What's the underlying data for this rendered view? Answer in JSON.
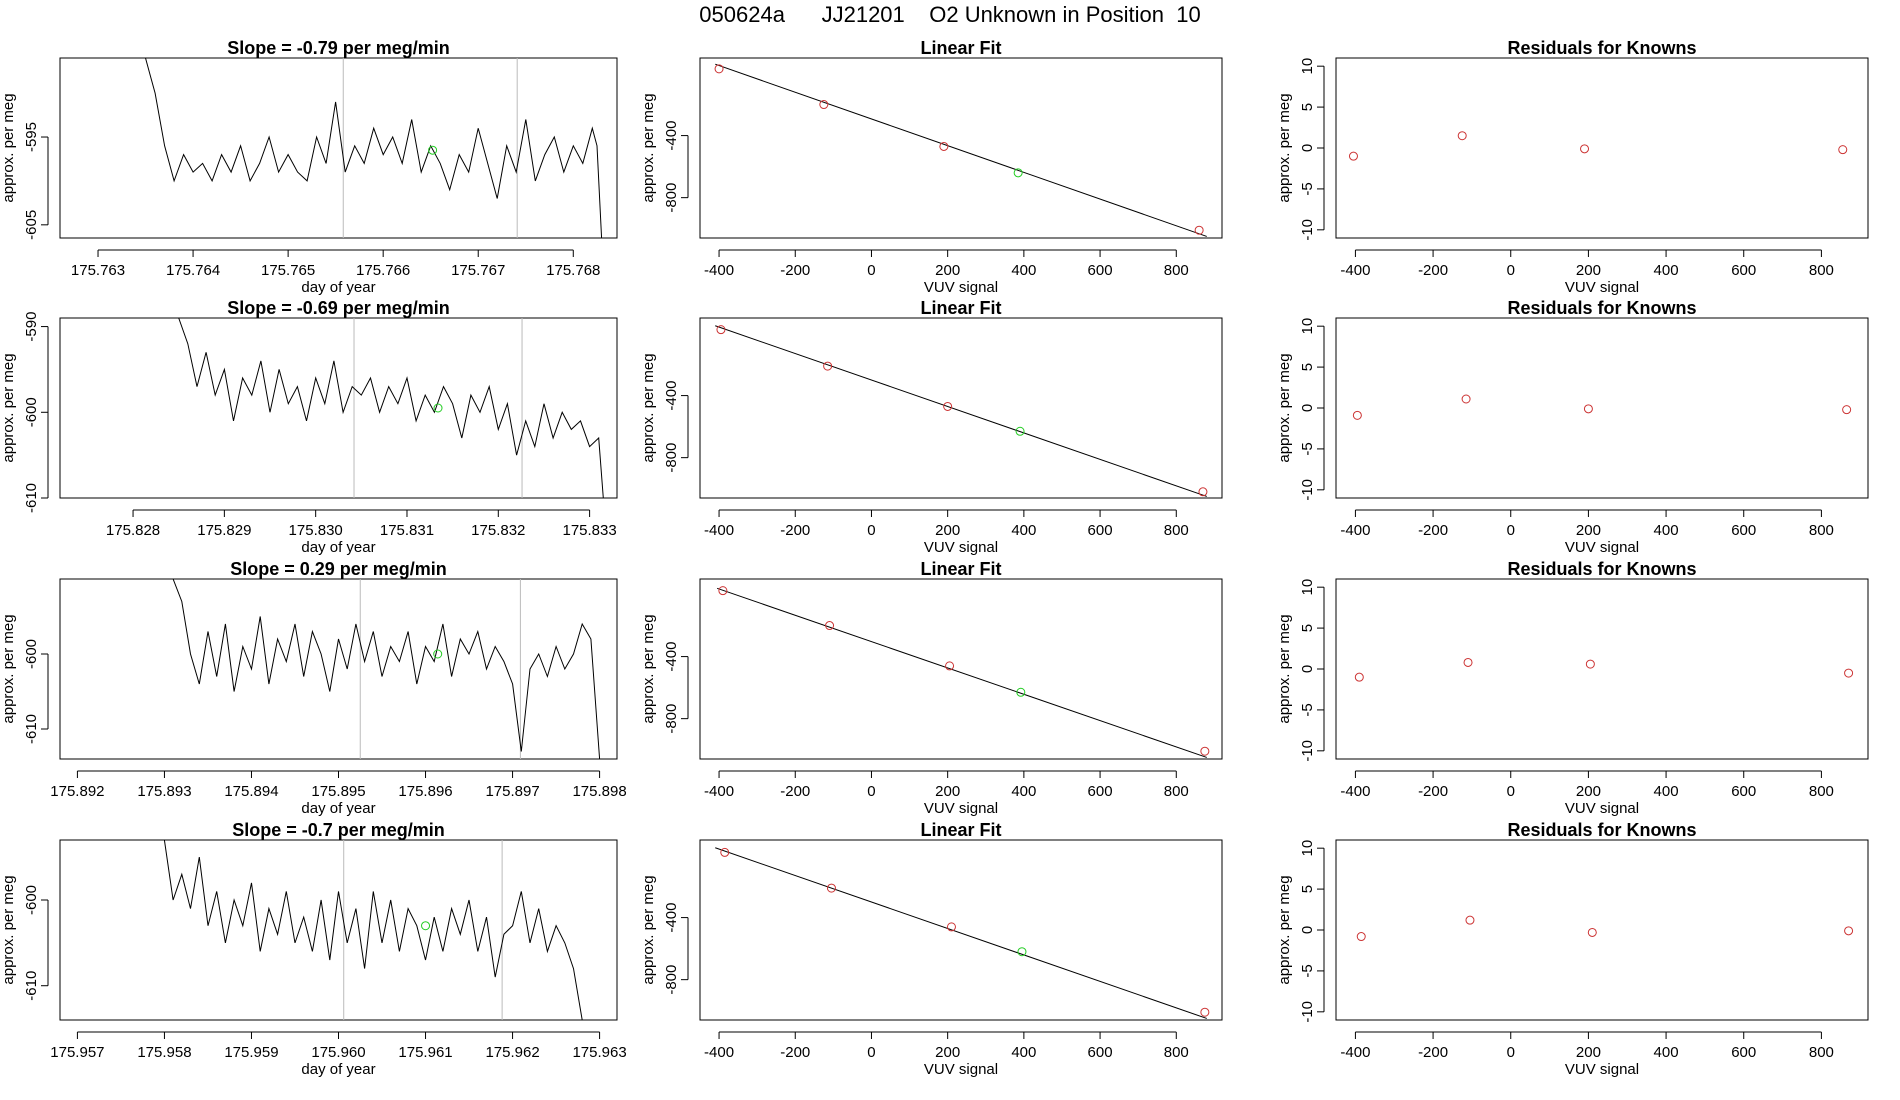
{
  "page_title": "050624a      JJ21201    O2 Unknown in Position  10",
  "colors": {
    "known_point": "#cc3333",
    "unknown_point": "#22cc22",
    "line": "#000000",
    "vline": "#bbbbbb"
  },
  "chart_data": [
    {
      "row": 1,
      "panel": "timeseries",
      "type": "line",
      "title": "Slope =  -0.79  per meg/min",
      "xlabel": "day of year",
      "ylabel": "approx. per meg",
      "xlim": [
        175.7626,
        175.76846
      ],
      "ylim": [
        -606.5,
        -586
      ],
      "xticks": [
        175.763,
        175.764,
        175.765,
        175.766,
        175.767,
        175.768
      ],
      "xtick_labels": [
        "175.763",
        "175.764",
        "175.765",
        "175.766",
        "175.767",
        "175.768"
      ],
      "yticks": [
        -595,
        -605
      ],
      "ytick_labels": [
        "-595",
        "-605"
      ],
      "vlines": [
        175.76558,
        175.76741
      ],
      "unknown_point": {
        "x": 175.76652,
        "y": -596.5
      },
      "x": [
        175.7635,
        175.76355,
        175.7636,
        175.7637,
        175.7638,
        175.7639,
        175.764,
        175.7641,
        175.7642,
        175.7643,
        175.7644,
        175.7645,
        175.7646,
        175.7647,
        175.7648,
        175.7649,
        175.765,
        175.7651,
        175.7652,
        175.7653,
        175.7654,
        175.7655,
        175.7656,
        175.7657,
        175.7658,
        175.7659,
        175.766,
        175.7661,
        175.7662,
        175.7663,
        175.7664,
        175.7665,
        175.7666,
        175.7667,
        175.7668,
        175.7669,
        175.767,
        175.7671,
        175.7672,
        175.7673,
        175.7674,
        175.7675,
        175.7676,
        175.7677,
        175.7678,
        175.7679,
        175.768,
        175.7681,
        175.7682,
        175.76825,
        175.7683
      ],
      "y": [
        -586,
        -588,
        -590,
        -596,
        -600,
        -597,
        -599,
        -598,
        -600,
        -597,
        -599,
        -596,
        -600,
        -598,
        -595,
        -599,
        -597,
        -599,
        -600,
        -595,
        -598,
        -591,
        -599,
        -596,
        -598,
        -594,
        -597,
        -595,
        -598,
        -593,
        -599,
        -596,
        -598,
        -601,
        -597,
        -599,
        -594,
        -598,
        -602,
        -596,
        -599,
        -593,
        -600,
        -597,
        -595,
        -599,
        -596,
        -598,
        -594,
        -596,
        -607
      ]
    },
    {
      "row": 1,
      "panel": "linear_fit",
      "type": "scatter",
      "title": "Linear Fit",
      "xlabel": "VUV signal",
      "ylabel": "approx. per meg",
      "xlim": [
        -450,
        920
      ],
      "ylim": [
        -1060,
        100
      ],
      "xticks": [
        -400,
        -200,
        0,
        200,
        400,
        600,
        800
      ],
      "xtick_labels": [
        "-400",
        "-200",
        "0",
        "200",
        "400",
        "600",
        "800"
      ],
      "yticks": [
        -400,
        -800
      ],
      "ytick_labels": [
        "-400",
        "-800"
      ],
      "fit_line": {
        "x": [
          -410,
          880
        ],
        "y": [
          60,
          -1050
        ]
      },
      "known_points": {
        "x": [
          -400,
          -125,
          190,
          860
        ],
        "y": [
          30,
          -200,
          -470,
          -1010
        ]
      },
      "unknown_point": {
        "x": 385,
        "y": -640
      }
    },
    {
      "row": 1,
      "panel": "residuals",
      "type": "scatter",
      "title": "Residuals for Knowns",
      "xlabel": "VUV signal",
      "ylabel": "approx. per meg",
      "xlim": [
        -450,
        920
      ],
      "ylim": [
        -11,
        11
      ],
      "xticks": [
        -400,
        -200,
        0,
        200,
        400,
        600,
        800
      ],
      "xtick_labels": [
        "-400",
        "-200",
        "0",
        "200",
        "400",
        "600",
        "800"
      ],
      "yticks": [
        10,
        5,
        0,
        -5,
        -10
      ],
      "ytick_labels": [
        "10",
        "5",
        "0",
        "-5",
        "-10"
      ],
      "points": {
        "x": [
          -405,
          -125,
          190,
          855
        ],
        "y": [
          -1,
          1.5,
          -0.1,
          -0.2
        ]
      }
    },
    {
      "row": 2,
      "panel": "timeseries",
      "type": "line",
      "title": "Slope =  -0.69  per meg/min",
      "xlabel": "day of year",
      "ylabel": "approx. per meg",
      "xlim": [
        175.8272,
        175.8333
      ],
      "ylim": [
        -610,
        -589
      ],
      "xticks": [
        175.828,
        175.829,
        175.83,
        175.831,
        175.832,
        175.833
      ],
      "xtick_labels": [
        "175.828",
        "175.829",
        "175.830",
        "175.831",
        "175.832",
        "175.833"
      ],
      "yticks": [
        -590,
        -600,
        -610
      ],
      "ytick_labels": [
        "-590",
        "-600",
        "-610"
      ],
      "vlines": [
        175.83042,
        175.83226
      ],
      "unknown_point": {
        "x": 175.83134,
        "y": -599.5
      },
      "x": [
        175.8285,
        175.8286,
        175.8287,
        175.8288,
        175.8289,
        175.829,
        175.8291,
        175.8292,
        175.8293,
        175.8294,
        175.8295,
        175.8296,
        175.8297,
        175.8298,
        175.8299,
        175.83,
        175.8301,
        175.8302,
        175.8303,
        175.8304,
        175.8305,
        175.8306,
        175.8307,
        175.8308,
        175.8309,
        175.831,
        175.8311,
        175.8312,
        175.8313,
        175.8314,
        175.8315,
        175.8316,
        175.8317,
        175.8318,
        175.8319,
        175.832,
        175.8321,
        175.8322,
        175.8323,
        175.8324,
        175.8325,
        175.8326,
        175.8327,
        175.8328,
        175.8329,
        175.833,
        175.8331,
        175.83315
      ],
      "y": [
        -589,
        -592,
        -597,
        -593,
        -598,
        -595,
        -601,
        -596,
        -598,
        -594,
        -600,
        -595,
        -599,
        -597,
        -601,
        -596,
        -599,
        -594,
        -600,
        -597,
        -598,
        -596,
        -600,
        -597,
        -599,
        -596,
        -601,
        -598,
        -600,
        -597,
        -599,
        -603,
        -598,
        -600,
        -597,
        -602,
        -599,
        -605,
        -601,
        -604,
        -599,
        -603,
        -600,
        -602,
        -601,
        -604,
        -603,
        -610
      ]
    },
    {
      "row": 2,
      "panel": "linear_fit",
      "type": "scatter",
      "title": "Linear Fit",
      "xlabel": "VUV signal",
      "ylabel": "approx. per meg",
      "xlim": [
        -450,
        920
      ],
      "ylim": [
        -1060,
        100
      ],
      "xticks": [
        -400,
        -200,
        0,
        200,
        400,
        600,
        800
      ],
      "xtick_labels": [
        "-400",
        "-200",
        "0",
        "200",
        "400",
        "600",
        "800"
      ],
      "yticks": [
        -400,
        -800
      ],
      "ytick_labels": [
        "-400",
        "-800"
      ],
      "fit_line": {
        "x": [
          -410,
          880
        ],
        "y": [
          50,
          -1050
        ]
      },
      "known_points": {
        "x": [
          -395,
          -115,
          200,
          870
        ],
        "y": [
          25,
          -210,
          -470,
          -1020
        ]
      },
      "unknown_point": {
        "x": 390,
        "y": -630
      }
    },
    {
      "row": 2,
      "panel": "residuals",
      "type": "scatter",
      "title": "Residuals for Knowns",
      "xlabel": "VUV signal",
      "ylabel": "approx. per meg",
      "xlim": [
        -450,
        920
      ],
      "ylim": [
        -11,
        11
      ],
      "xticks": [
        -400,
        -200,
        0,
        200,
        400,
        600,
        800
      ],
      "xtick_labels": [
        "-400",
        "-200",
        "0",
        "200",
        "400",
        "600",
        "800"
      ],
      "yticks": [
        10,
        5,
        0,
        -5,
        -10
      ],
      "ytick_labels": [
        "10",
        "5",
        "0",
        "-5",
        "-10"
      ],
      "points": {
        "x": [
          -395,
          -115,
          200,
          865
        ],
        "y": [
          -0.9,
          1.1,
          -0.1,
          -0.2
        ]
      }
    },
    {
      "row": 3,
      "panel": "timeseries",
      "type": "line",
      "title": "Slope =  0.29  per meg/min",
      "xlabel": "day of year",
      "ylabel": "approx. per meg",
      "xlim": [
        175.8918,
        175.8982
      ],
      "ylim": [
        -614,
        -590
      ],
      "xticks": [
        175.892,
        175.893,
        175.894,
        175.895,
        175.896,
        175.897,
        175.898
      ],
      "xtick_labels": [
        "175.892",
        "175.893",
        "175.894",
        "175.895",
        "175.896",
        "175.897",
        "175.898"
      ],
      "yticks": [
        -600,
        -610
      ],
      "ytick_labels": [
        "-600",
        "-610"
      ],
      "vlines": [
        175.89525,
        175.89709
      ],
      "unknown_point": {
        "x": 175.89614,
        "y": -600
      },
      "x": [
        175.8931,
        175.8932,
        175.8933,
        175.8934,
        175.8935,
        175.8936,
        175.8937,
        175.8938,
        175.8939,
        175.894,
        175.8941,
        175.8942,
        175.8943,
        175.8944,
        175.8945,
        175.8946,
        175.8947,
        175.8948,
        175.8949,
        175.895,
        175.8951,
        175.8952,
        175.8953,
        175.8954,
        175.8955,
        175.8956,
        175.8957,
        175.8958,
        175.8959,
        175.896,
        175.8961,
        175.8962,
        175.8963,
        175.8964,
        175.8965,
        175.8966,
        175.8967,
        175.8968,
        175.8969,
        175.897,
        175.8971,
        175.8972,
        175.8973,
        175.8974,
        175.8975,
        175.8976,
        175.8977,
        175.8978,
        175.8979,
        175.898
      ],
      "y": [
        -590,
        -593,
        -600,
        -604,
        -597,
        -603,
        -596,
        -605,
        -599,
        -602,
        -595,
        -604,
        -598,
        -601,
        -596,
        -603,
        -597,
        -600,
        -605,
        -598,
        -602,
        -596,
        -601,
        -597,
        -603,
        -599,
        -601,
        -597,
        -604,
        -599,
        -601,
        -596,
        -603,
        -598,
        -600,
        -597,
        -602,
        -599,
        -601,
        -604,
        -613,
        -602,
        -600,
        -603,
        -599,
        -602,
        -600,
        -596,
        -598,
        -614
      ]
    },
    {
      "row": 3,
      "panel": "linear_fit",
      "type": "scatter",
      "title": "Linear Fit",
      "xlabel": "VUV signal",
      "ylabel": "approx. per meg",
      "xlim": [
        -450,
        920
      ],
      "ylim": [
        -1060,
        100
      ],
      "xticks": [
        -400,
        -200,
        0,
        200,
        400,
        600,
        800
      ],
      "xtick_labels": [
        "-400",
        "-200",
        "0",
        "200",
        "400",
        "600",
        "800"
      ],
      "yticks": [
        -400,
        -800
      ],
      "ytick_labels": [
        "-400",
        "-800"
      ],
      "fit_line": {
        "x": [
          -405,
          880
        ],
        "y": [
          40,
          -1050
        ]
      },
      "known_points": {
        "x": [
          -390,
          -110,
          205,
          875
        ],
        "y": [
          25,
          -200,
          -460,
          -1010
        ]
      },
      "unknown_point": {
        "x": 392,
        "y": -630
      }
    },
    {
      "row": 3,
      "panel": "residuals",
      "type": "scatter",
      "title": "Residuals for Knowns",
      "xlabel": "VUV signal",
      "ylabel": "approx. per meg",
      "xlim": [
        -450,
        920
      ],
      "ylim": [
        -11,
        11
      ],
      "xticks": [
        -400,
        -200,
        0,
        200,
        400,
        600,
        800
      ],
      "xtick_labels": [
        "-400",
        "-200",
        "0",
        "200",
        "400",
        "600",
        "800"
      ],
      "yticks": [
        10,
        5,
        0,
        -5,
        -10
      ],
      "ytick_labels": [
        "10",
        "5",
        "0",
        "-5",
        "-10"
      ],
      "points": {
        "x": [
          -390,
          -110,
          205,
          870
        ],
        "y": [
          -1,
          0.8,
          0.6,
          -0.5
        ]
      }
    },
    {
      "row": 4,
      "panel": "timeseries",
      "type": "line",
      "title": "Slope =  -0.7  per meg/min",
      "xlabel": "day of year",
      "ylabel": "approx. per meg",
      "xlim": [
        175.9568,
        175.9632
      ],
      "ylim": [
        -614,
        -593
      ],
      "xticks": [
        175.957,
        175.958,
        175.959,
        175.96,
        175.961,
        175.962,
        175.963
      ],
      "xtick_labels": [
        "175.957",
        "175.958",
        "175.959",
        "175.960",
        "175.961",
        "175.962",
        "175.963"
      ],
      "yticks": [
        -600,
        -610
      ],
      "ytick_labels": [
        "-600",
        "-610"
      ],
      "vlines": [
        175.96006,
        175.96188
      ],
      "unknown_point": {
        "x": 175.961,
        "y": -603
      },
      "x": [
        175.958,
        175.9581,
        175.9582,
        175.9583,
        175.9584,
        175.9585,
        175.9586,
        175.9587,
        175.9588,
        175.9589,
        175.959,
        175.9591,
        175.9592,
        175.9593,
        175.9594,
        175.9595,
        175.9596,
        175.9597,
        175.9598,
        175.9599,
        175.96,
        175.9601,
        175.9602,
        175.9603,
        175.9604,
        175.9605,
        175.9606,
        175.9607,
        175.9608,
        175.9609,
        175.961,
        175.9611,
        175.9612,
        175.9613,
        175.9614,
        175.9615,
        175.9616,
        175.9617,
        175.9618,
        175.9619,
        175.962,
        175.9621,
        175.9622,
        175.9623,
        175.9624,
        175.9625,
        175.9626,
        175.9627,
        175.9628
      ],
      "y": [
        -593,
        -600,
        -597,
        -601,
        -595,
        -603,
        -599,
        -605,
        -600,
        -603,
        -598,
        -606,
        -601,
        -604,
        -599,
        -605,
        -602,
        -606,
        -600,
        -607,
        -599,
        -605,
        -601,
        -608,
        -599,
        -605,
        -600,
        -606,
        -601,
        -603,
        -607,
        -602,
        -606,
        -601,
        -604,
        -600,
        -606,
        -602,
        -609,
        -604,
        -603,
        -599,
        -605,
        -601,
        -606,
        -603,
        -605,
        -608,
        -614
      ]
    },
    {
      "row": 4,
      "panel": "linear_fit",
      "type": "scatter",
      "title": "Linear Fit",
      "xlabel": "VUV signal",
      "ylabel": "approx. per meg",
      "xlim": [
        -450,
        920
      ],
      "ylim": [
        -1060,
        100
      ],
      "xticks": [
        -400,
        -200,
        0,
        200,
        400,
        600,
        800
      ],
      "xtick_labels": [
        "-400",
        "-200",
        "0",
        "200",
        "400",
        "600",
        "800"
      ],
      "yticks": [
        -400,
        -800
      ],
      "ytick_labels": [
        "-400",
        "-800"
      ],
      "fit_line": {
        "x": [
          -410,
          880
        ],
        "y": [
          50,
          -1050
        ]
      },
      "known_points": {
        "x": [
          -385,
          -105,
          210,
          875
        ],
        "y": [
          20,
          -210,
          -460,
          -1010
        ]
      },
      "unknown_point": {
        "x": 395,
        "y": -620
      }
    },
    {
      "row": 4,
      "panel": "residuals",
      "type": "scatter",
      "title": "Residuals for Knowns",
      "xlabel": "VUV signal",
      "ylabel": "approx. per meg",
      "xlim": [
        -450,
        920
      ],
      "ylim": [
        -11,
        11
      ],
      "xticks": [
        -400,
        -200,
        0,
        200,
        400,
        600,
        800
      ],
      "xtick_labels": [
        "-400",
        "-200",
        "0",
        "200",
        "400",
        "600",
        "800"
      ],
      "yticks": [
        10,
        5,
        0,
        -5,
        -10
      ],
      "ytick_labels": [
        "10",
        "5",
        "0",
        "-5",
        "-10"
      ],
      "points": {
        "x": [
          -385,
          -105,
          210,
          870
        ],
        "y": [
          -0.8,
          1.2,
          -0.3,
          -0.1
        ]
      }
    }
  ]
}
